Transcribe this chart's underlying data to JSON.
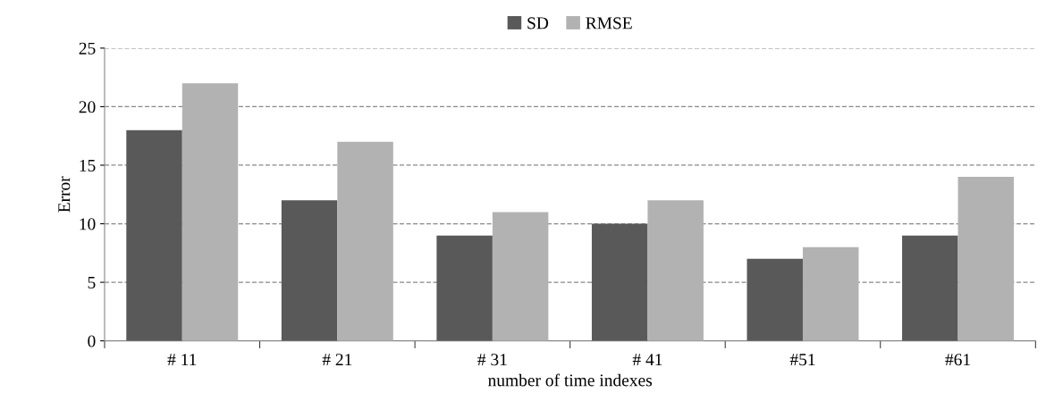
{
  "chart_data": {
    "type": "bar",
    "ylabel": "Error",
    "xlabel": "number of time indexes",
    "categories": [
      "# 11",
      "# 21",
      "# 31",
      "# 41",
      "#51",
      "#61"
    ],
    "series": [
      {
        "name": "SD",
        "color": "#595959",
        "values": [
          18,
          12,
          9,
          10,
          7,
          9
        ]
      },
      {
        "name": "RMSE",
        "color": "#b2b2b2",
        "values": [
          22,
          17,
          11,
          12,
          8,
          14
        ]
      }
    ],
    "ylim": [
      0,
      25
    ],
    "yticks": [
      0,
      5,
      10,
      15,
      20,
      25
    ],
    "grid": "y",
    "legend": "top"
  }
}
